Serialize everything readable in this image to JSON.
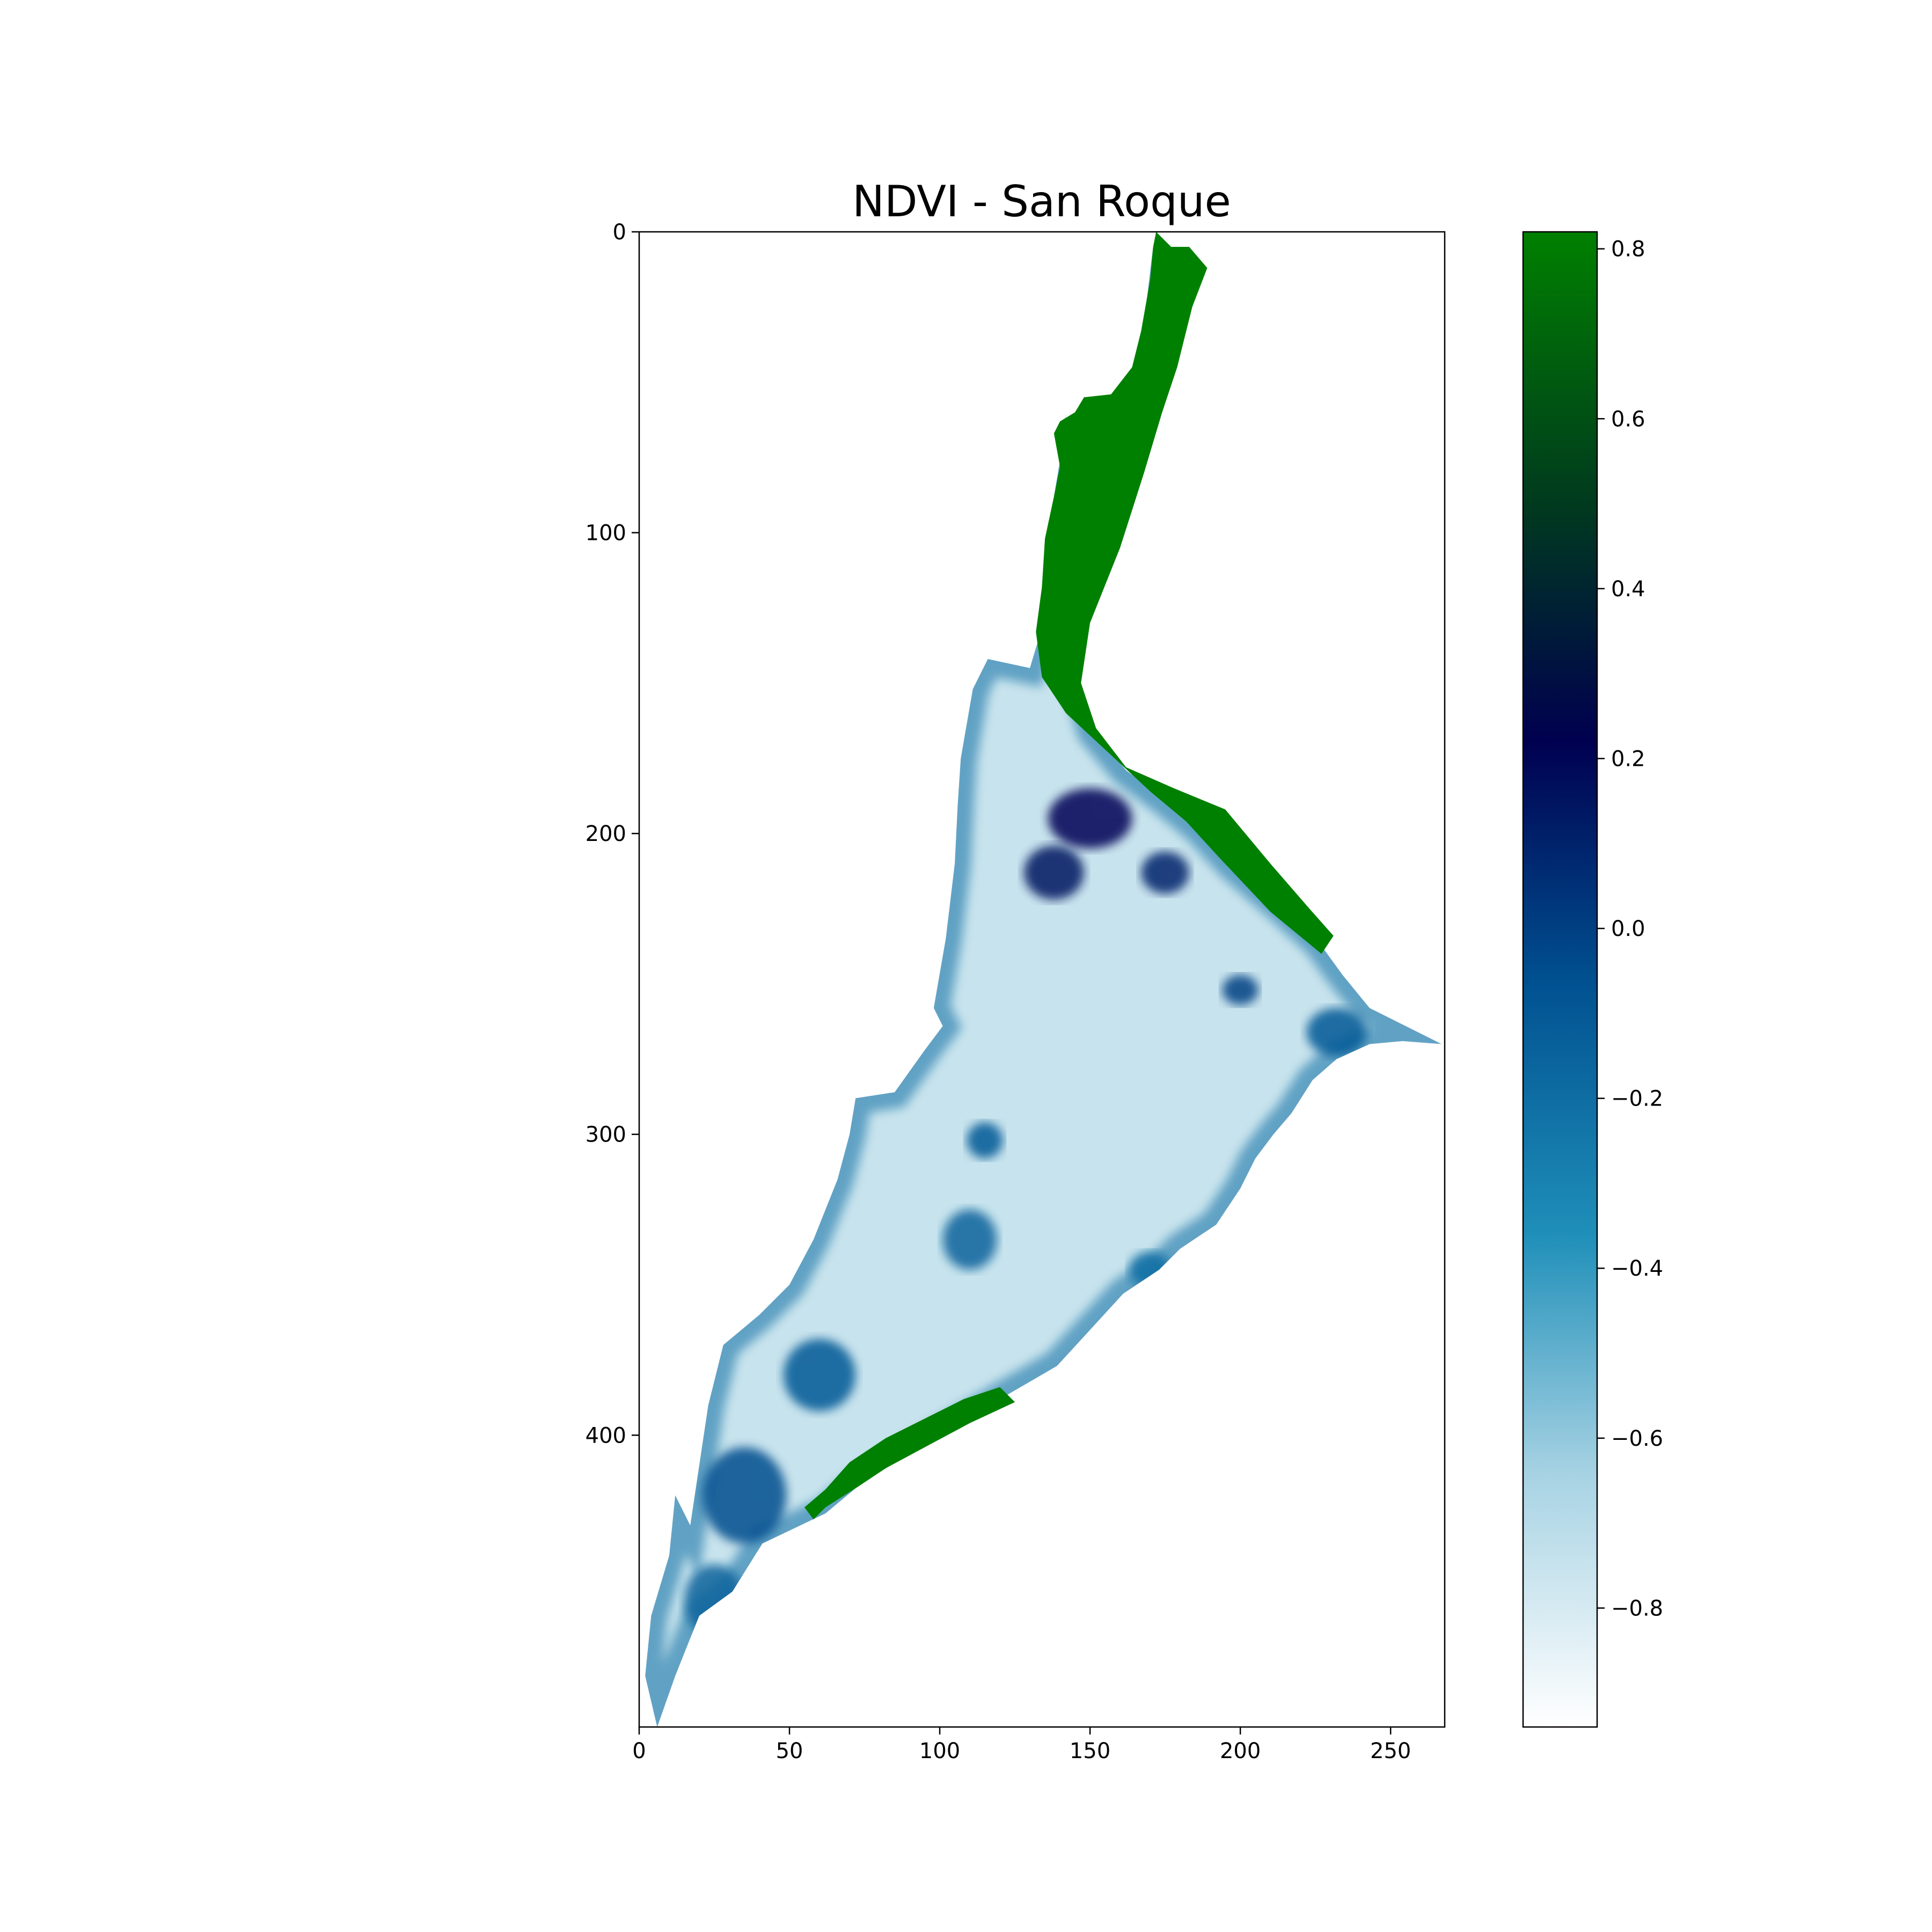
{
  "chart_data": {
    "type": "heatmap",
    "title": "NDVI - San Roque",
    "xlabel": "",
    "ylabel": "",
    "image_shape": {
      "rows": 497,
      "cols": 268
    },
    "xlim": [
      0,
      268
    ],
    "ylim": [
      497,
      0
    ],
    "x_ticks": [
      0,
      50,
      100,
      150,
      200,
      250
    ],
    "y_ticks": [
      0,
      100,
      200,
      300,
      400
    ],
    "grid": false,
    "colormap": {
      "name": "ocean_r",
      "stops": [
        {
          "value": -0.94,
          "color": "#ffffff"
        },
        {
          "value": -0.64,
          "color": "#a6d2e3"
        },
        {
          "value": -0.36,
          "color": "#1f8fb9"
        },
        {
          "value": -0.06,
          "color": "#005090"
        },
        {
          "value": 0.22,
          "color": "#000050"
        },
        {
          "value": 0.5,
          "color": "#003a1e"
        },
        {
          "value": 0.82,
          "color": "#008000"
        }
      ],
      "vmin": -0.94,
      "vmax": 0.82
    },
    "colorbar": {
      "ticks": [
        "0.8",
        "0.6",
        "0.4",
        "0.2",
        "0.0",
        "−0.2",
        "−0.4",
        "−0.6",
        "−0.8"
      ],
      "tick_values": [
        0.8,
        0.6,
        0.4,
        0.2,
        0.0,
        -0.2,
        -0.4,
        -0.6,
        -0.8
      ],
      "placement": "right"
    },
    "regions": {
      "vegetation_north": {
        "value": 0.82,
        "outline": [
          [
            172,
            0
          ],
          [
            177,
            5
          ],
          [
            183,
            5
          ],
          [
            189,
            12
          ],
          [
            184,
            25
          ],
          [
            179,
            45
          ],
          [
            174,
            60
          ],
          [
            168,
            80
          ],
          [
            160,
            105
          ],
          [
            150,
            130
          ],
          [
            147,
            150
          ],
          [
            152,
            165
          ],
          [
            162,
            178
          ],
          [
            178,
            185
          ],
          [
            195,
            192
          ],
          [
            210,
            210
          ],
          [
            223,
            225
          ],
          [
            231,
            234
          ],
          [
            227,
            240
          ],
          [
            210,
            226
          ],
          [
            193,
            208
          ],
          [
            182,
            196
          ],
          [
            170,
            186
          ],
          [
            156,
            173
          ],
          [
            142,
            160
          ],
          [
            134,
            148
          ],
          [
            132,
            133
          ],
          [
            134,
            118
          ],
          [
            135,
            102
          ],
          [
            138,
            88
          ],
          [
            140,
            78
          ],
          [
            138,
            67
          ],
          [
            140,
            63
          ],
          [
            145,
            60
          ],
          [
            148,
            55
          ],
          [
            157,
            54
          ],
          [
            164,
            45
          ],
          [
            167,
            33
          ],
          [
            170,
            16
          ],
          [
            171,
            5
          ]
        ]
      },
      "vegetation_south": {
        "value": 0.82,
        "outline": [
          [
            55,
            424
          ],
          [
            62,
            418
          ],
          [
            70,
            409
          ],
          [
            82,
            401
          ],
          [
            96,
            394
          ],
          [
            108,
            388
          ],
          [
            120,
            384
          ],
          [
            125,
            389
          ],
          [
            110,
            396
          ],
          [
            95,
            404
          ],
          [
            82,
            411
          ],
          [
            73,
            417
          ],
          [
            62,
            424
          ],
          [
            58,
            428
          ]
        ]
      },
      "water_body": {
        "value": -0.75,
        "outline": [
          [
            142,
            60
          ],
          [
            141,
            70
          ],
          [
            138,
            88
          ],
          [
            134,
            118
          ],
          [
            133,
            135
          ],
          [
            130,
            145
          ],
          [
            116,
            142
          ],
          [
            111,
            152
          ],
          [
            107,
            175
          ],
          [
            106,
            190
          ],
          [
            105,
            210
          ],
          [
            102,
            235
          ],
          [
            98,
            258
          ],
          [
            101,
            264
          ],
          [
            95,
            272
          ],
          [
            85,
            286
          ],
          [
            72,
            288
          ],
          [
            70,
            300
          ],
          [
            66,
            315
          ],
          [
            58,
            335
          ],
          [
            50,
            350
          ],
          [
            40,
            360
          ],
          [
            28,
            370
          ],
          [
            23,
            390
          ],
          [
            20,
            410
          ],
          [
            17,
            430
          ],
          [
            12,
            420
          ],
          [
            10,
            440
          ],
          [
            4,
            460
          ],
          [
            2,
            480
          ],
          [
            6,
            497
          ],
          [
            12,
            480
          ],
          [
            20,
            460
          ],
          [
            31,
            452
          ],
          [
            41,
            436
          ],
          [
            62,
            426
          ],
          [
            74,
            416
          ],
          [
            95,
            403
          ],
          [
            120,
            388
          ],
          [
            139,
            377
          ],
          [
            150,
            365
          ],
          [
            161,
            353
          ],
          [
            173,
            345
          ],
          [
            180,
            338
          ],
          [
            192,
            330
          ],
          [
            200,
            318
          ],
          [
            205,
            308
          ],
          [
            211,
            300
          ],
          [
            217,
            293
          ],
          [
            224,
            282
          ],
          [
            232,
            275
          ],
          [
            243,
            270
          ],
          [
            254,
            269
          ],
          [
            267,
            270
          ],
          [
            255,
            264
          ],
          [
            243,
            258
          ],
          [
            234,
            247
          ],
          [
            226,
            236
          ],
          [
            213,
            224
          ],
          [
            197,
            210
          ],
          [
            186,
            198
          ],
          [
            174,
            188
          ],
          [
            162,
            179
          ],
          [
            151,
            166
          ],
          [
            146,
            150
          ],
          [
            149,
            130
          ],
          [
            156,
            110
          ],
          [
            160,
            92
          ],
          [
            164,
            75
          ],
          [
            170,
            45
          ],
          [
            171,
            20
          ],
          [
            171,
            5
          ],
          [
            168,
            30
          ],
          [
            163,
            55
          ],
          [
            157,
            78
          ],
          [
            150,
            96
          ],
          [
            145,
            108
          ],
          [
            140,
            110
          ],
          [
            138,
            95
          ],
          [
            141,
            80
          ]
        ]
      },
      "deep_zones": [
        {
          "center": [
            150,
            195
          ],
          "radius": [
            14,
            10
          ],
          "value": 0.2
        },
        {
          "center": [
            138,
            213
          ],
          "radius": [
            10,
            9
          ],
          "value": 0.15
        },
        {
          "center": [
            175,
            213
          ],
          "radius": [
            8,
            7
          ],
          "value": 0.1
        },
        {
          "center": [
            200,
            252
          ],
          "radius": [
            6,
            5
          ],
          "value": 0.0
        },
        {
          "center": [
            232,
            266
          ],
          "radius": [
            10,
            8
          ],
          "value": -0.1
        },
        {
          "center": [
            115,
            302
          ],
          "radius": [
            6,
            6
          ],
          "value": -0.1
        },
        {
          "center": [
            110,
            335
          ],
          "radius": [
            9,
            10
          ],
          "value": -0.15
        },
        {
          "center": [
            60,
            380
          ],
          "radius": [
            12,
            12
          ],
          "value": -0.1
        },
        {
          "center": [
            35,
            420
          ],
          "radius": [
            14,
            16
          ],
          "value": -0.05
        },
        {
          "center": [
            25,
            455
          ],
          "radius": [
            10,
            12
          ],
          "value": -0.15
        },
        {
          "center": [
            170,
            345
          ],
          "radius": [
            7,
            6
          ],
          "value": -0.2
        }
      ]
    }
  }
}
